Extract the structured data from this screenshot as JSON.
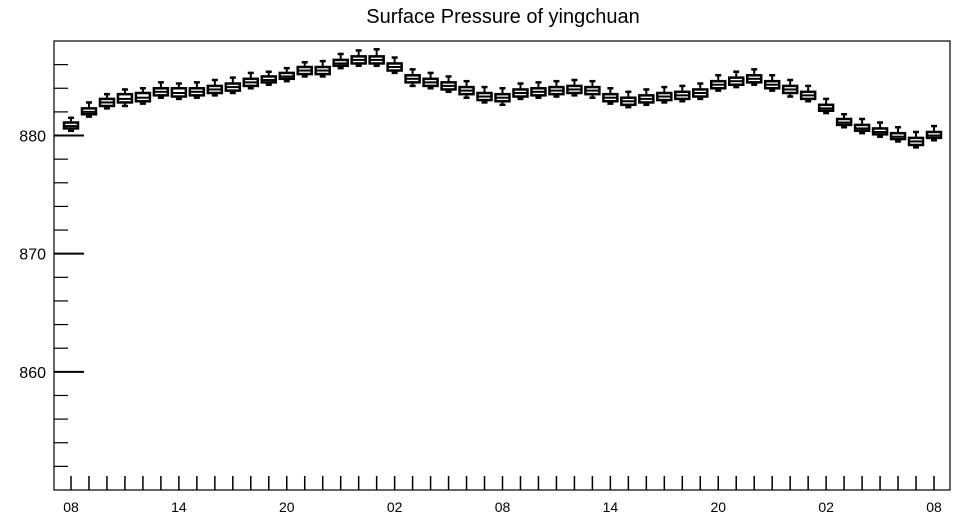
{
  "chart_data": {
    "type": "boxplot",
    "title": "Surface Pressure of yingchuan",
    "xlabel": "",
    "ylabel": "",
    "ylim": [
      850,
      888
    ],
    "y_major_ticks": [
      860,
      870,
      880
    ],
    "y_major_tick_labels": [
      "860",
      "870",
      "880"
    ],
    "x_tick_labels": [
      "08",
      "14",
      "20",
      "02",
      "08",
      "14",
      "20",
      "02",
      "08"
    ],
    "x_tick_label_index": [
      0,
      6,
      12,
      18,
      24,
      30,
      36,
      42,
      48
    ],
    "grid": false,
    "legend": "none",
    "colors": {
      "box": "#000000",
      "fill": "#ffffff",
      "background": "#ffffff"
    },
    "series": [
      {
        "medians": [
          880.8,
          882.0,
          882.8,
          883.1,
          883.2,
          883.7,
          883.6,
          883.7,
          883.9,
          884.1,
          884.5,
          884.7,
          885.0,
          885.5,
          885.5,
          886.1,
          886.4,
          886.4,
          885.8,
          884.8,
          884.5,
          884.2,
          883.8,
          883.3,
          883.2,
          883.6,
          883.7,
          883.8,
          883.9,
          883.8,
          883.2,
          882.9,
          883.1,
          883.3,
          883.4,
          883.6,
          884.3,
          884.6,
          884.8,
          884.3,
          883.9,
          883.4,
          882.3,
          881.1,
          880.6,
          880.3,
          879.9,
          879.5,
          880.0
        ],
        "q1": [
          880.6,
          881.8,
          882.5,
          882.8,
          882.9,
          883.4,
          883.3,
          883.4,
          883.6,
          883.8,
          884.2,
          884.5,
          884.8,
          885.2,
          885.2,
          885.9,
          886.1,
          886.1,
          885.5,
          884.5,
          884.2,
          883.9,
          883.5,
          883.0,
          882.9,
          883.3,
          883.4,
          883.5,
          883.6,
          883.5,
          882.9,
          882.6,
          882.8,
          883.0,
          883.1,
          883.3,
          884.0,
          884.3,
          884.5,
          884.0,
          883.6,
          883.1,
          882.1,
          880.9,
          880.4,
          880.1,
          879.7,
          879.2,
          879.8
        ],
        "q3": [
          881.1,
          882.3,
          883.1,
          883.5,
          883.6,
          884.0,
          884.0,
          884.0,
          884.2,
          884.4,
          884.8,
          885.0,
          885.3,
          885.8,
          885.8,
          886.4,
          886.7,
          886.7,
          886.1,
          885.1,
          884.8,
          884.5,
          884.1,
          883.6,
          883.5,
          883.9,
          884.0,
          884.1,
          884.2,
          884.1,
          883.5,
          883.2,
          883.4,
          883.6,
          883.7,
          883.9,
          884.6,
          884.9,
          885.1,
          884.6,
          884.2,
          883.7,
          882.6,
          881.4,
          880.9,
          880.6,
          880.2,
          879.8,
          880.3
        ],
        "whisker_low": [
          880.4,
          881.6,
          882.3,
          882.5,
          882.7,
          883.2,
          883.1,
          883.2,
          883.4,
          883.6,
          884.0,
          884.3,
          884.6,
          885.0,
          885.0,
          885.7,
          885.9,
          885.9,
          885.3,
          884.2,
          884.0,
          883.7,
          883.2,
          882.8,
          882.6,
          883.1,
          883.2,
          883.3,
          883.4,
          883.2,
          882.7,
          882.4,
          882.6,
          882.8,
          882.9,
          883.1,
          883.8,
          884.1,
          884.3,
          883.8,
          883.3,
          882.9,
          881.9,
          880.7,
          880.2,
          879.9,
          879.5,
          879.0,
          879.6
        ],
        "whisker_high": [
          881.5,
          882.8,
          883.5,
          883.9,
          884.0,
          884.5,
          884.4,
          884.5,
          884.7,
          884.9,
          885.3,
          885.4,
          885.7,
          886.2,
          886.3,
          886.9,
          887.2,
          887.3,
          886.6,
          885.6,
          885.3,
          885.0,
          884.6,
          884.1,
          884.0,
          884.4,
          884.5,
          884.6,
          884.7,
          884.6,
          884.0,
          883.7,
          883.9,
          884.1,
          884.2,
          884.4,
          885.1,
          885.4,
          885.6,
          885.1,
          884.7,
          884.2,
          883.1,
          881.8,
          881.4,
          881.1,
          880.7,
          880.3,
          880.8
        ]
      }
    ]
  }
}
